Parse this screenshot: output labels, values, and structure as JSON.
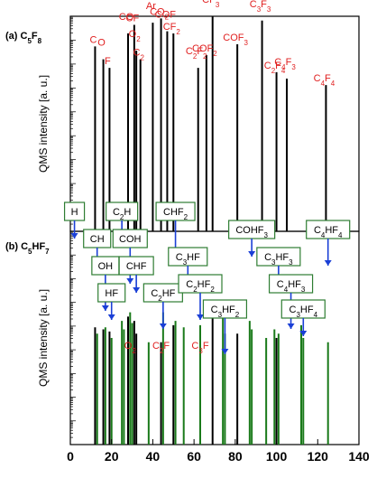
{
  "chart_data": {
    "type": "bar",
    "xlim": [
      0,
      140
    ],
    "xticks": [
      "0",
      "20",
      "40",
      "60",
      "80",
      "100",
      "120",
      "140"
    ],
    "grid": false,
    "panels": [
      {
        "title_main": "(a) C",
        "title_parts": [
          [
            "5",
            "sub"
          ],
          [
            "F",
            ""
          ],
          [
            "8",
            "sub"
          ]
        ],
        "ylabel": "QMS intensity [a. u.]",
        "y_scale": "log",
        "series": [
          {
            "color": "#000000",
            "x": [
              12,
              16,
              19,
              28,
              31,
              32,
              34,
              40,
              44,
              47,
              50,
              62,
              66,
              69,
              81,
              93,
              100,
              105,
              124
            ],
            "values": [
              0.86,
              0.8,
              0.76,
              0.92,
              0.96,
              0.84,
              0.8,
              0.97,
              0.99,
              0.93,
              0.92,
              0.76,
              0.82,
              1.0,
              0.87,
              0.98,
              0.74,
              0.71,
              0.68
            ]
          }
        ],
        "labels": [
          {
            "text": [
              [
                "C",
                ""
              ]
            ],
            "x": 12
          },
          {
            "text": [
              [
                "O",
                ""
              ]
            ],
            "x": 16
          },
          {
            "text": [
              [
                "F",
                ""
              ]
            ],
            "x": 19
          },
          {
            "text": [
              [
                "CO",
                ""
              ]
            ],
            "x": 28
          },
          {
            "text": [
              [
                "CF",
                ""
              ]
            ],
            "x": 31
          },
          {
            "text": [
              [
                "O",
                ""
              ],
              [
                "2",
                "sub"
              ]
            ],
            "x": 32
          },
          {
            "text": [
              [
                "C",
                ""
              ],
              [
                "2",
                "sub"
              ]
            ],
            "x": 34
          },
          {
            "text": [
              [
                "Ar",
                ""
              ]
            ],
            "x": 40
          },
          {
            "text": [
              [
                "CO",
                ""
              ],
              [
                "2",
                "sub"
              ]
            ],
            "x": 44
          },
          {
            "text": [
              [
                "COF",
                ""
              ]
            ],
            "x": 47
          },
          {
            "text": [
              [
                "CF",
                ""
              ],
              [
                "2",
                "sub"
              ]
            ],
            "x": 50
          },
          {
            "text": [
              [
                "C",
                ""
              ],
              [
                "2",
                "sub"
              ],
              [
                "F",
                ""
              ],
              [
                "2",
                "sub"
              ]
            ],
            "x": 62
          },
          {
            "text": [
              [
                "COF",
                ""
              ],
              [
                "2",
                "sub"
              ]
            ],
            "x": 66
          },
          {
            "text": [
              [
                "CF",
                ""
              ],
              [
                "3",
                "sub"
              ]
            ],
            "x": 69
          },
          {
            "text": [
              [
                "COF",
                ""
              ],
              [
                "3",
                "sub"
              ]
            ],
            "x": 81
          },
          {
            "text": [
              [
                "C",
                ""
              ],
              [
                "3",
                "sub"
              ],
              [
                "F",
                ""
              ],
              [
                "3",
                "sub"
              ]
            ],
            "x": 93
          },
          {
            "text": [
              [
                "C",
                ""
              ],
              [
                "2",
                "sub"
              ],
              [
                "F",
                ""
              ],
              [
                "4",
                "sub"
              ]
            ],
            "x": 100
          },
          {
            "text": [
              [
                "C",
                ""
              ],
              [
                "4",
                "sub"
              ],
              [
                "F",
                ""
              ],
              [
                "3",
                "sub"
              ]
            ],
            "x": 105
          },
          {
            "text": [
              [
                "C",
                ""
              ],
              [
                "4",
                "sub"
              ],
              [
                "F",
                ""
              ],
              [
                "4",
                "sub"
              ]
            ],
            "x": 124
          }
        ]
      },
      {
        "title_main": "(b) C",
        "title_parts": [
          [
            "5",
            "sub"
          ],
          [
            "HF",
            ""
          ],
          [
            "7",
            "sub"
          ]
        ],
        "ylabel": "QMS intensity [a. u.]",
        "y_scale": "log",
        "series": [
          {
            "color": "#000000",
            "x": [
              12,
              16,
              19,
              28,
              31,
              32,
              44,
              50,
              69,
              81,
              100
            ],
            "values": [
              0.55,
              0.54,
              0.53,
              0.6,
              0.58,
              0.52,
              0.48,
              0.56,
              0.66,
              0.52,
              0.5
            ]
          },
          {
            "color": "#1a7a1a",
            "x": [
              13,
              17,
              20,
              25,
              26,
              29,
              30,
              38,
              45,
              51,
              55,
              63,
              74,
              75,
              87,
              88,
              95,
              99,
              101,
              112,
              113,
              125
            ],
            "values": [
              0.52,
              0.55,
              0.5,
              0.58,
              0.54,
              0.62,
              0.57,
              0.48,
              0.62,
              0.58,
              0.55,
              0.56,
              0.6,
              0.52,
              0.58,
              0.54,
              0.5,
              0.54,
              0.52,
              0.56,
              0.5,
              0.48
            ]
          }
        ],
        "red_labels": [
          {
            "text": [
              [
                "O",
                ""
              ],
              [
                "2",
                "sub"
              ]
            ],
            "x": 29
          },
          {
            "text": [
              [
                "C",
                ""
              ],
              [
                "2",
                "sub"
              ],
              [
                "F",
                ""
              ]
            ],
            "x": 44
          },
          {
            "text": [
              [
                "C",
                ""
              ],
              [
                "3",
                "sub"
              ],
              [
                "F",
                ""
              ]
            ],
            "x": 63
          }
        ],
        "fragments": [
          {
            "text": [
              [
                "H",
                ""
              ]
            ],
            "x": 2
          },
          {
            "text": [
              [
                "CH",
                ""
              ]
            ],
            "x": 13
          },
          {
            "text": [
              [
                "OH",
                ""
              ]
            ],
            "x": 17
          },
          {
            "text": [
              [
                "HF",
                ""
              ]
            ],
            "x": 20
          },
          {
            "text": [
              [
                "C",
                ""
              ],
              [
                "2",
                "sub"
              ],
              [
                "H",
                ""
              ]
            ],
            "x": 25
          },
          {
            "text": [
              [
                "COH",
                ""
              ]
            ],
            "x": 29
          },
          {
            "text": [
              [
                "CHF",
                ""
              ]
            ],
            "x": 32
          },
          {
            "text": [
              [
                "C",
                ""
              ],
              [
                "2",
                "sub"
              ],
              [
                "HF",
                ""
              ]
            ],
            "x": 45
          },
          {
            "text": [
              [
                "CHF",
                ""
              ],
              [
                "2",
                "sub"
              ]
            ],
            "x": 51
          },
          {
            "text": [
              [
                "C",
                ""
              ],
              [
                "3",
                "sub"
              ],
              [
                "HF",
                ""
              ]
            ],
            "x": 57
          },
          {
            "text": [
              [
                "C",
                ""
              ],
              [
                "2",
                "sub"
              ],
              [
                "HF",
                ""
              ],
              [
                "2",
                "sub"
              ]
            ],
            "x": 63
          },
          {
            "text": [
              [
                "C",
                ""
              ],
              [
                "3",
                "sub"
              ],
              [
                "HF",
                ""
              ],
              [
                "2",
                "sub"
              ]
            ],
            "x": 75
          },
          {
            "text": [
              [
                "COHF",
                ""
              ],
              [
                "3",
                "sub"
              ]
            ],
            "x": 88
          },
          {
            "text": [
              [
                "C",
                ""
              ],
              [
                "3",
                "sub"
              ],
              [
                "HF",
                ""
              ],
              [
                "3",
                "sub"
              ]
            ],
            "x": 101
          },
          {
            "text": [
              [
                "C",
                ""
              ],
              [
                "4",
                "sub"
              ],
              [
                "HF",
                ""
              ],
              [
                "3",
                "sub"
              ]
            ],
            "x": 107
          },
          {
            "text": [
              [
                "C",
                ""
              ],
              [
                "3",
                "sub"
              ],
              [
                "HF",
                ""
              ],
              [
                "4",
                "sub"
              ]
            ],
            "x": 113
          },
          {
            "text": [
              [
                "C",
                ""
              ],
              [
                "4",
                "sub"
              ],
              [
                "HF",
                ""
              ],
              [
                "4",
                "sub"
              ]
            ],
            "x": 125
          }
        ]
      }
    ]
  }
}
